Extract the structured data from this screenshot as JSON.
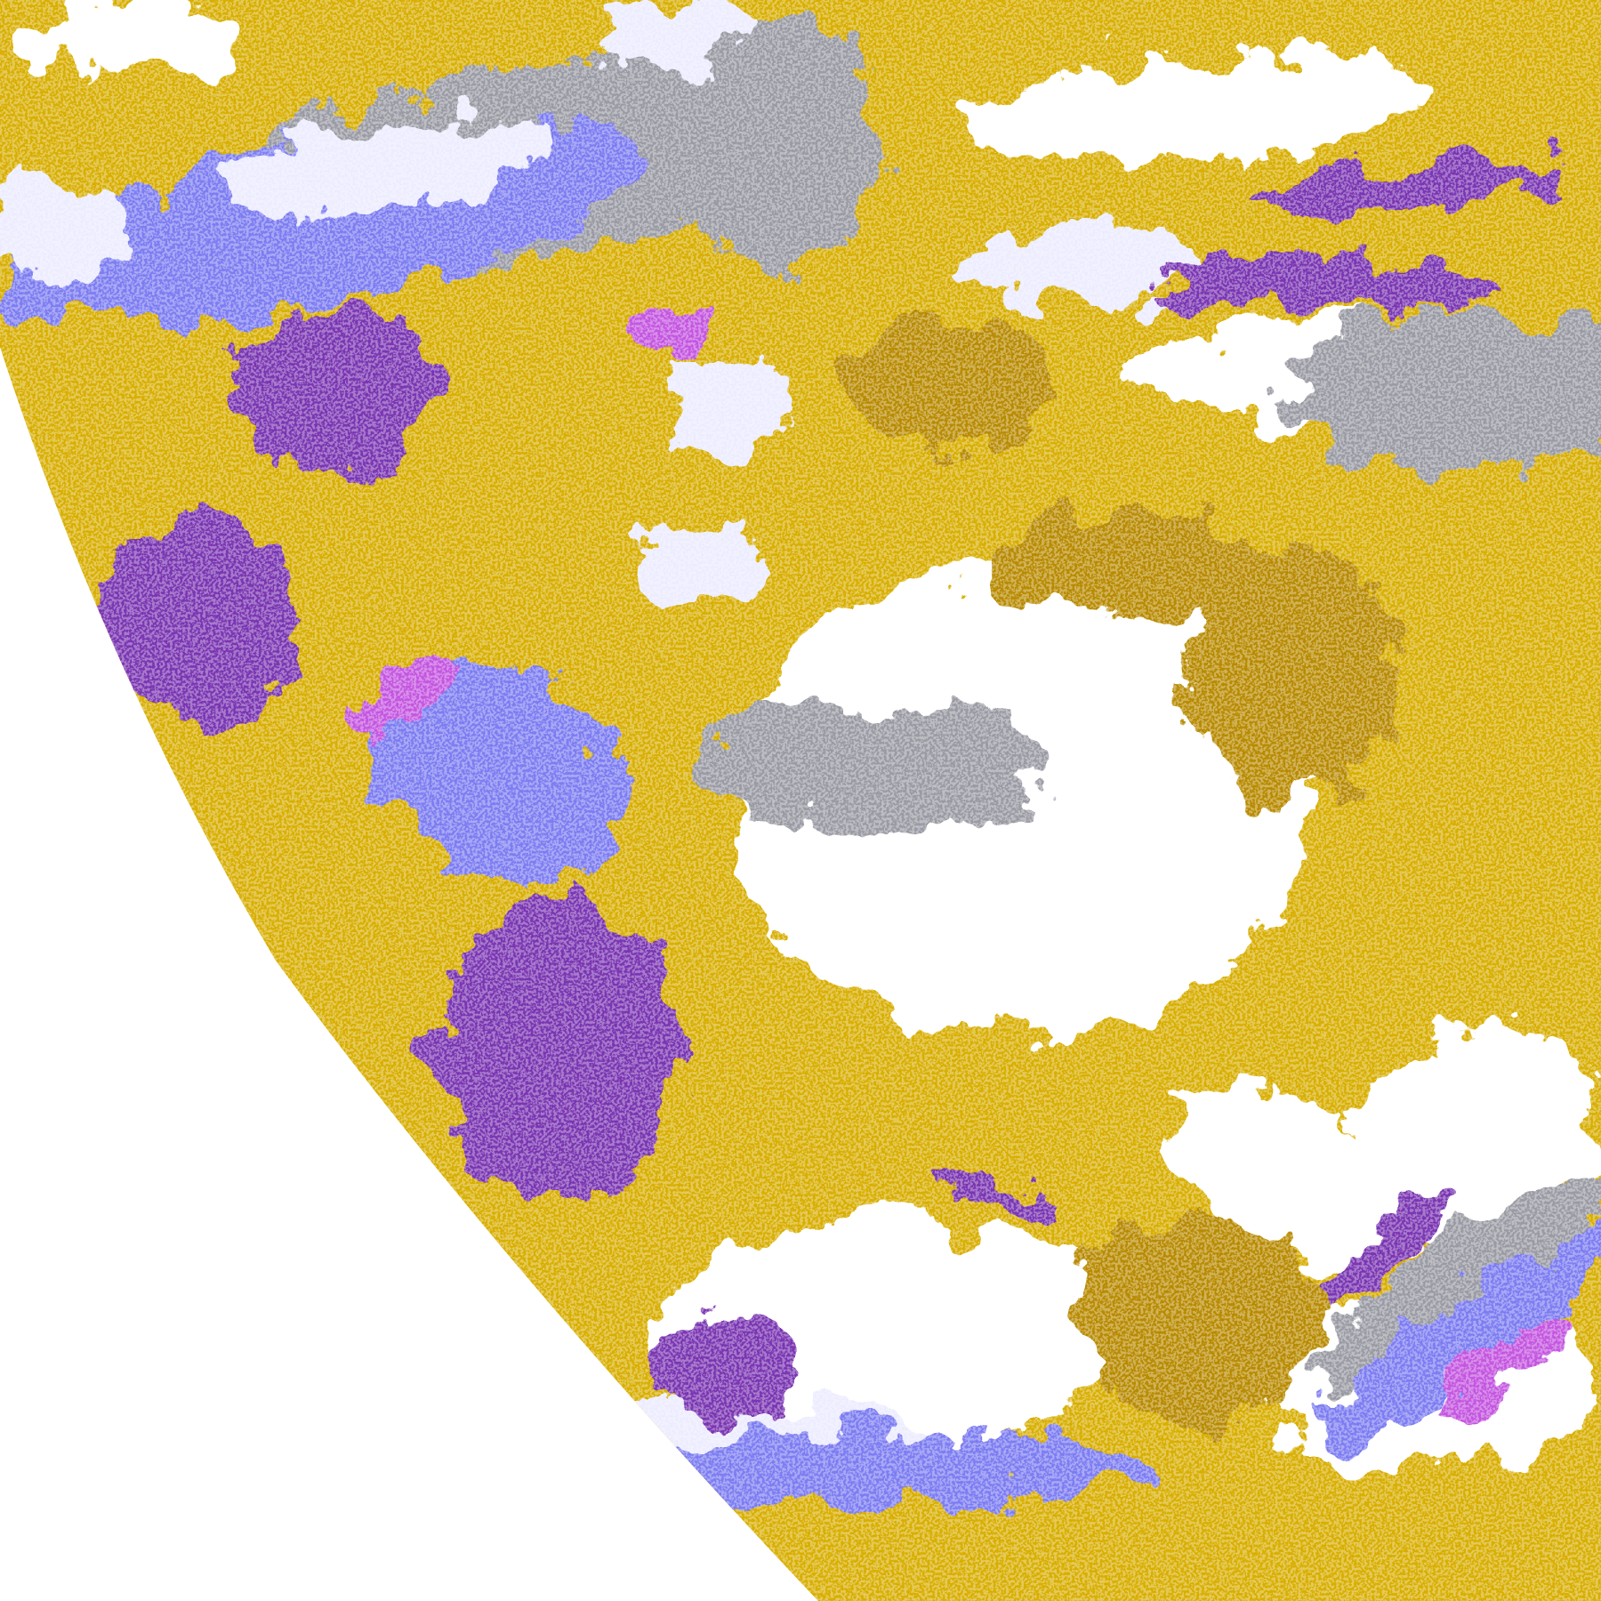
{
  "image": {
    "kind": "false-color satellite cloud classification",
    "colors": {
      "background": "#ffffff",
      "gold": "#d8ae00",
      "dark_gold": "#b88a00",
      "purple": "#7a34b2",
      "magenta": "#c455e0",
      "lavender": "#7c7cf2",
      "pale": "#ececff",
      "gray": "#9a9aa4",
      "clear": "#ffffff"
    }
  }
}
